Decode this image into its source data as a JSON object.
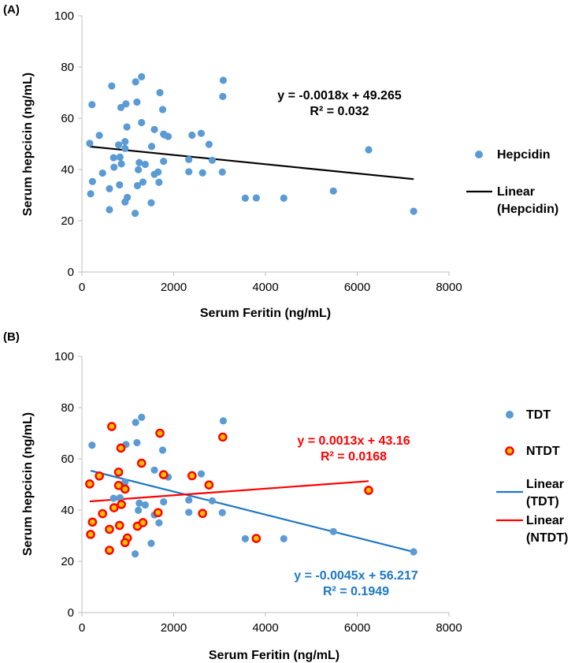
{
  "chart_data": [
    {
      "panel": "(A)",
      "type": "scatter",
      "xlabel": "Serum Feritin (ng/mL)",
      "ylabel": "Serum hepcicin (ng/mL)",
      "xlim": [
        0,
        8000
      ],
      "ylim": [
        0,
        100
      ],
      "xticks": [
        0,
        2000,
        4000,
        6000,
        8000
      ],
      "yticks": [
        0,
        20,
        40,
        60,
        80,
        100
      ],
      "legend_position": "right",
      "series": [
        {
          "name": "Hepcidin",
          "color": "#5b9bd5",
          "marker": "circle",
          "points": [
            [
              220,
              65.3
            ],
            [
              650,
              72.6
            ],
            [
              1170,
              74.2
            ],
            [
              1300,
              76.2
            ],
            [
              960,
              65.6
            ],
            [
              1200,
              66.3
            ],
            [
              1700,
              70.0
            ],
            [
              3080,
              74.8
            ],
            [
              3070,
              68.5
            ],
            [
              850,
              64.2
            ],
            [
              1760,
              63.4
            ],
            [
              1300,
              58.3
            ],
            [
              980,
              56.6
            ],
            [
              1580,
              55.6
            ],
            [
              1800,
              53.5
            ],
            [
              1880,
              52.9
            ],
            [
              1780,
              53.8
            ],
            [
              2400,
              53.4
            ],
            [
              2600,
              54.1
            ],
            [
              380,
              53.3
            ],
            [
              800,
              49.6
            ],
            [
              940,
              50.9
            ],
            [
              940,
              48.2
            ],
            [
              1520,
              49.0
            ],
            [
              170,
              50.2
            ],
            [
              2770,
              49.8
            ],
            [
              2840,
              43.6
            ],
            [
              2330,
              43.9
            ],
            [
              1780,
              43.2
            ],
            [
              690,
              44.6
            ],
            [
              830,
              44.8
            ],
            [
              860,
              42.2
            ],
            [
              1250,
              42.7
            ],
            [
              1380,
              42.0
            ],
            [
              700,
              40.9
            ],
            [
              1230,
              39.9
            ],
            [
              1580,
              38.1
            ],
            [
              1660,
              39.0
            ],
            [
              2330,
              39.1
            ],
            [
              2630,
              38.7
            ],
            [
              3060,
              39.0
            ],
            [
              450,
              38.6
            ],
            [
              230,
              35.3
            ],
            [
              820,
              34.0
            ],
            [
              1210,
              33.7
            ],
            [
              1330,
              35.1
            ],
            [
              1680,
              35.0
            ],
            [
              600,
              32.5
            ],
            [
              190,
              30.5
            ],
            [
              990,
              29.1
            ],
            [
              940,
              27.3
            ],
            [
              1510,
              27.0
            ],
            [
              600,
              24.3
            ],
            [
              1160,
              22.9
            ],
            [
              3560,
              28.8
            ],
            [
              3800,
              28.9
            ],
            [
              4400,
              28.8
            ],
            [
              5480,
              31.6
            ],
            [
              6250,
              47.7
            ],
            [
              7230,
              23.7
            ]
          ]
        },
        {
          "name": "Linear\n(Hepcidin)",
          "type": "line",
          "color": "#000000",
          "slope": -0.0018,
          "intercept": 49.265,
          "x_range": [
            170,
            7230
          ]
        }
      ],
      "annotations": [
        {
          "text": "y = -0.0018x + 49.265",
          "color": "#000000"
        },
        {
          "text": "R² = 0.032",
          "color": "#000000"
        }
      ]
    },
    {
      "panel": "(B)",
      "type": "scatter",
      "xlabel": "Serum Feritin (ng/mL)",
      "ylabel": "Serum hepcicin (ng/mL)",
      "xlim": [
        0,
        8000
      ],
      "ylim": [
        0,
        100
      ],
      "xticks": [
        0,
        2000,
        4000,
        6000,
        8000
      ],
      "yticks": [
        0,
        20,
        40,
        60,
        80,
        100
      ],
      "legend_position": "right",
      "series": [
        {
          "name": "TDT",
          "color": "#5b9bd5",
          "marker": "circle",
          "points": [
            [
              220,
              65.3
            ],
            [
              1170,
              74.2
            ],
            [
              1300,
              76.2
            ],
            [
              960,
              65.6
            ],
            [
              1200,
              66.3
            ],
            [
              1760,
              63.4
            ],
            [
              3080,
              74.8
            ],
            [
              1580,
              55.6
            ],
            [
              1880,
              52.9
            ],
            [
              2600,
              54.1
            ],
            [
              940,
              50.9
            ],
            [
              690,
              44.6
            ],
            [
              830,
              44.8
            ],
            [
              1250,
              42.7
            ],
            [
              1380,
              42.0
            ],
            [
              1780,
              43.2
            ],
            [
              2330,
              43.9
            ],
            [
              2840,
              43.6
            ],
            [
              1230,
              39.9
            ],
            [
              1580,
              38.1
            ],
            [
              1680,
              35.0
            ],
            [
              2330,
              39.1
            ],
            [
              3060,
              39.0
            ],
            [
              1510,
              27.0
            ],
            [
              1160,
              22.9
            ],
            [
              3560,
              28.8
            ],
            [
              4400,
              28.8
            ],
            [
              5480,
              31.6
            ],
            [
              7230,
              23.7
            ]
          ]
        },
        {
          "name": "NTDT",
          "color": "#ff0000",
          "fill": "#ffc000",
          "marker": "circle",
          "points": [
            [
              650,
              72.6
            ],
            [
              1700,
              70.0
            ],
            [
              3070,
              68.5
            ],
            [
              850,
              64.2
            ],
            [
              1300,
              58.3
            ],
            [
              800,
              54.8
            ],
            [
              1780,
              53.8
            ],
            [
              2400,
              53.4
            ],
            [
              380,
              53.3
            ],
            [
              800,
              49.6
            ],
            [
              940,
              48.2
            ],
            [
              170,
              50.2
            ],
            [
              2770,
              49.8
            ],
            [
              860,
              42.2
            ],
            [
              700,
              40.9
            ],
            [
              450,
              38.6
            ],
            [
              1660,
              39.0
            ],
            [
              2630,
              38.7
            ],
            [
              230,
              35.3
            ],
            [
              820,
              34.0
            ],
            [
              1210,
              33.7
            ],
            [
              1330,
              35.1
            ],
            [
              600,
              32.5
            ],
            [
              190,
              30.5
            ],
            [
              990,
              29.1
            ],
            [
              940,
              27.3
            ],
            [
              600,
              24.3
            ],
            [
              3800,
              28.9
            ],
            [
              6250,
              47.7
            ]
          ]
        },
        {
          "name": "Linear\n(TDT)",
          "type": "line",
          "color": "#1f77c4",
          "slope": -0.0045,
          "intercept": 56.217,
          "x_range": [
            190,
            7230
          ]
        },
        {
          "name": "Linear\n(NTDT)",
          "type": "line",
          "color": "#ff0000",
          "slope": 0.0013,
          "intercept": 43.16,
          "x_range": [
            170,
            6250
          ]
        }
      ],
      "annotations": [
        {
          "text": "y = 0.0013x + 43.16",
          "color": "#ff0000"
        },
        {
          "text": "R² = 0.0168",
          "color": "#ff0000"
        },
        {
          "text": "y = -0.0045x + 56.217",
          "color": "#1f77c4"
        },
        {
          "text": "R² = 0.1949",
          "color": "#1f77c4"
        }
      ]
    }
  ]
}
